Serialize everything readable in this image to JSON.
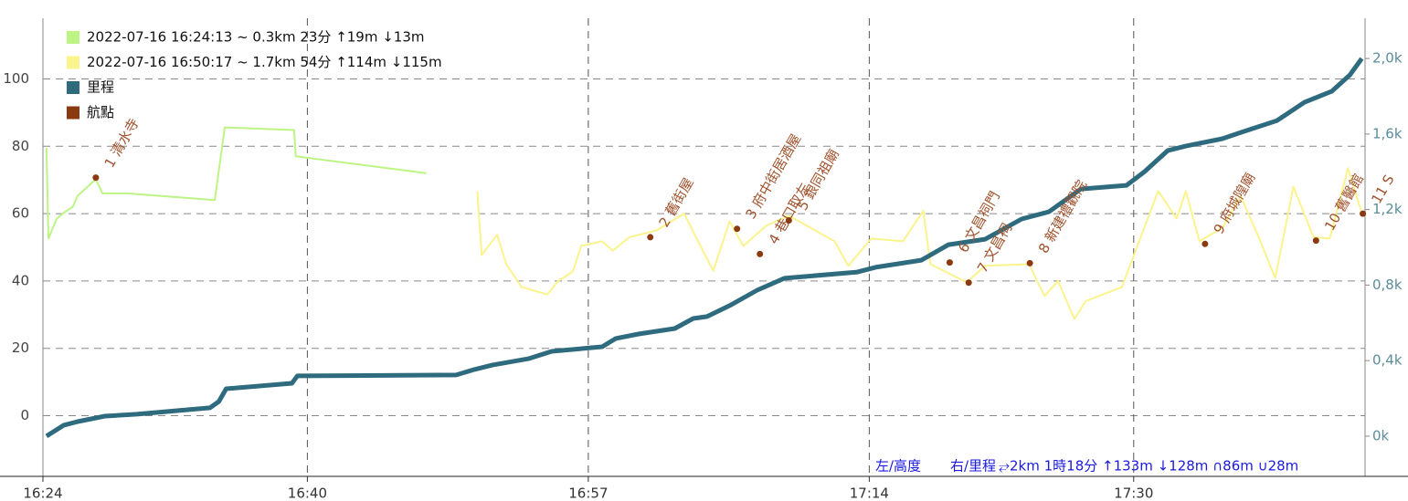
{
  "chart_data": {
    "type": "line",
    "xlim": [
      "16:24",
      "17:44"
    ],
    "xticks": [
      "16:24",
      "16:40",
      "16:57",
      "17:14",
      "17:30"
    ],
    "ylim": [
      -18,
      118
    ],
    "yticks": [
      0,
      20,
      40,
      60,
      80,
      100
    ],
    "y2lim": [
      -213,
      2213
    ],
    "y2ticks": [
      {
        "value": 0,
        "label": "0k"
      },
      {
        "value": 400,
        "label": "0,4k"
      },
      {
        "value": 800,
        "label": "0,8k"
      },
      {
        "value": 1200,
        "label": "1,2k"
      },
      {
        "value": 1600,
        "label": "1,6k"
      },
      {
        "value": 2000,
        "label": "2,0k"
      }
    ],
    "grid": true,
    "legend": "top-left",
    "annotations": [
      "左/高度",
      "右/里程",
      "⥂2km 1時18分 ↑133m ↓128m ∩86m ∪28m"
    ],
    "series": [
      {
        "name": "2022-07-16 16:24:13 ~ 0.3km 23分 ↑19m ↓13m",
        "color": "#bdf585",
        "x": [
          "16:24:13",
          "16:24:20",
          "16:24:50",
          "16:25:18",
          "16:25:48",
          "16:26:06",
          "16:27:12",
          "16:27:36",
          "16:29:06",
          "16:34:24",
          "16:35:00",
          "16:39:12",
          "16:39:18",
          "16:47:12"
        ],
        "values": [
          79.5,
          52.6,
          58.5,
          60.4,
          62,
          65.3,
          70.2,
          66,
          66,
          64,
          85.6,
          84.8,
          77,
          72
        ]
      },
      {
        "name": "2022-07-16 16:50:17 ~ 1.7km 54分 ↑114m ↓115m",
        "color": "#fbf38c",
        "x": [
          "16:50:17",
          "16:50:33",
          "16:51:29",
          "16:52:02",
          "16:52:58",
          "16:54:31",
          "16:55:11",
          "16:56:04",
          "16:56:34",
          "16:57:50",
          "16:58:29",
          "16:59:29",
          "17:01:08",
          "17:02:48",
          "17:03:47",
          "17:04:34",
          "17:05:33",
          "17:06:23",
          "17:07:46",
          "17:09:08",
          "17:11:54",
          "17:12:44",
          "17:14:07",
          "17:16:02",
          "17:17:16",
          "17:17:42",
          "17:19:54",
          "17:21:01",
          "17:23:40",
          "17:24:36",
          "17:25:25",
          "17:26:25",
          "17:27:05",
          "17:29:17",
          "17:30:07",
          "17:31:29",
          "17:32:36",
          "17:33:09",
          "17:33:59",
          "17:35:22",
          "17:36:28",
          "17:37:34",
          "17:38:34",
          "17:39:40",
          "17:40:53",
          "17:41:52",
          "17:42:58",
          "17:43:45"
        ],
        "values": [
          66.7,
          47.7,
          53.7,
          45,
          38.2,
          36,
          40,
          42.8,
          50.4,
          51.8,
          49,
          53,
          55,
          60,
          50.4,
          43,
          57.7,
          50.4,
          56.4,
          59.4,
          51.8,
          44.5,
          52.6,
          51.8,
          60.8,
          45,
          39.6,
          44.5,
          45,
          35.5,
          40,
          28.7,
          34,
          38.2,
          49,
          66.7,
          58.5,
          66.7,
          51.8,
          55.8,
          65.3,
          53,
          40.9,
          68,
          53,
          52.6,
          73.5,
          61
        ]
      },
      {
        "name": "里程",
        "color": "#2e6b7e",
        "axis": "y2",
        "x": [
          "16:24:13",
          "16:25:16",
          "16:26:06",
          "16:27:45",
          "16:29:41",
          "16:34:06",
          "16:34:39",
          "16:35:05",
          "16:39:04",
          "16:39:24",
          "16:49:00",
          "16:50:06",
          "16:51:13",
          "16:53:25",
          "16:54:47",
          "16:57:50",
          "16:58:40",
          "17:00:02",
          "17:02:14",
          "17:03:21",
          "17:04:11",
          "17:05:33",
          "17:07:13",
          "17:08:52",
          "17:13:17",
          "17:14:23",
          "17:17:09",
          "17:18:48",
          "17:21:01",
          "17:23:13",
          "17:24:52",
          "17:26:48",
          "17:29:34",
          "17:30:40",
          "17:32:03",
          "17:33:09",
          "17:35:22",
          "17:36:28",
          "17:38:40",
          "17:40:20",
          "17:41:59",
          "17:43:05",
          "17:43:48"
        ],
        "values": [
          0,
          58,
          77,
          106,
          116,
          150,
          184,
          251,
          280,
          319,
          324,
          353,
          377,
          411,
          449,
          473,
          517,
          541,
          570,
          623,
          633,
          691,
          773,
          836,
          869,
          894,
          932,
          1014,
          1043,
          1150,
          1188,
          1309,
          1328,
          1401,
          1512,
          1536,
          1575,
          1608,
          1671,
          1768,
          1826,
          1913,
          2000
        ]
      },
      {
        "name": "航點",
        "color": "#8b3a0f",
        "type": "scatter",
        "x": [
          "16:27:12",
          "17:00:45",
          "17:06:00",
          "17:07:23",
          "17:09:08",
          "17:18:52",
          "17:20:01",
          "17:23:43",
          "17:34:19",
          "17:41:02",
          "17:43:52"
        ],
        "values": [
          70.7,
          53,
          55.5,
          48,
          58,
          45.5,
          39.5,
          45.3,
          51,
          52,
          60
        ],
        "labels": [
          "1 清水寺",
          "2 舊街屋",
          "3 府中街居酒屋",
          "4 巷口取左",
          "5 銀同祖廟",
          "6 文昌祠門",
          "7 文昌祠",
          "8 新建禮觀院",
          "9 府城隍廟",
          "10 舊醫館",
          "11 S"
        ]
      }
    ]
  }
}
